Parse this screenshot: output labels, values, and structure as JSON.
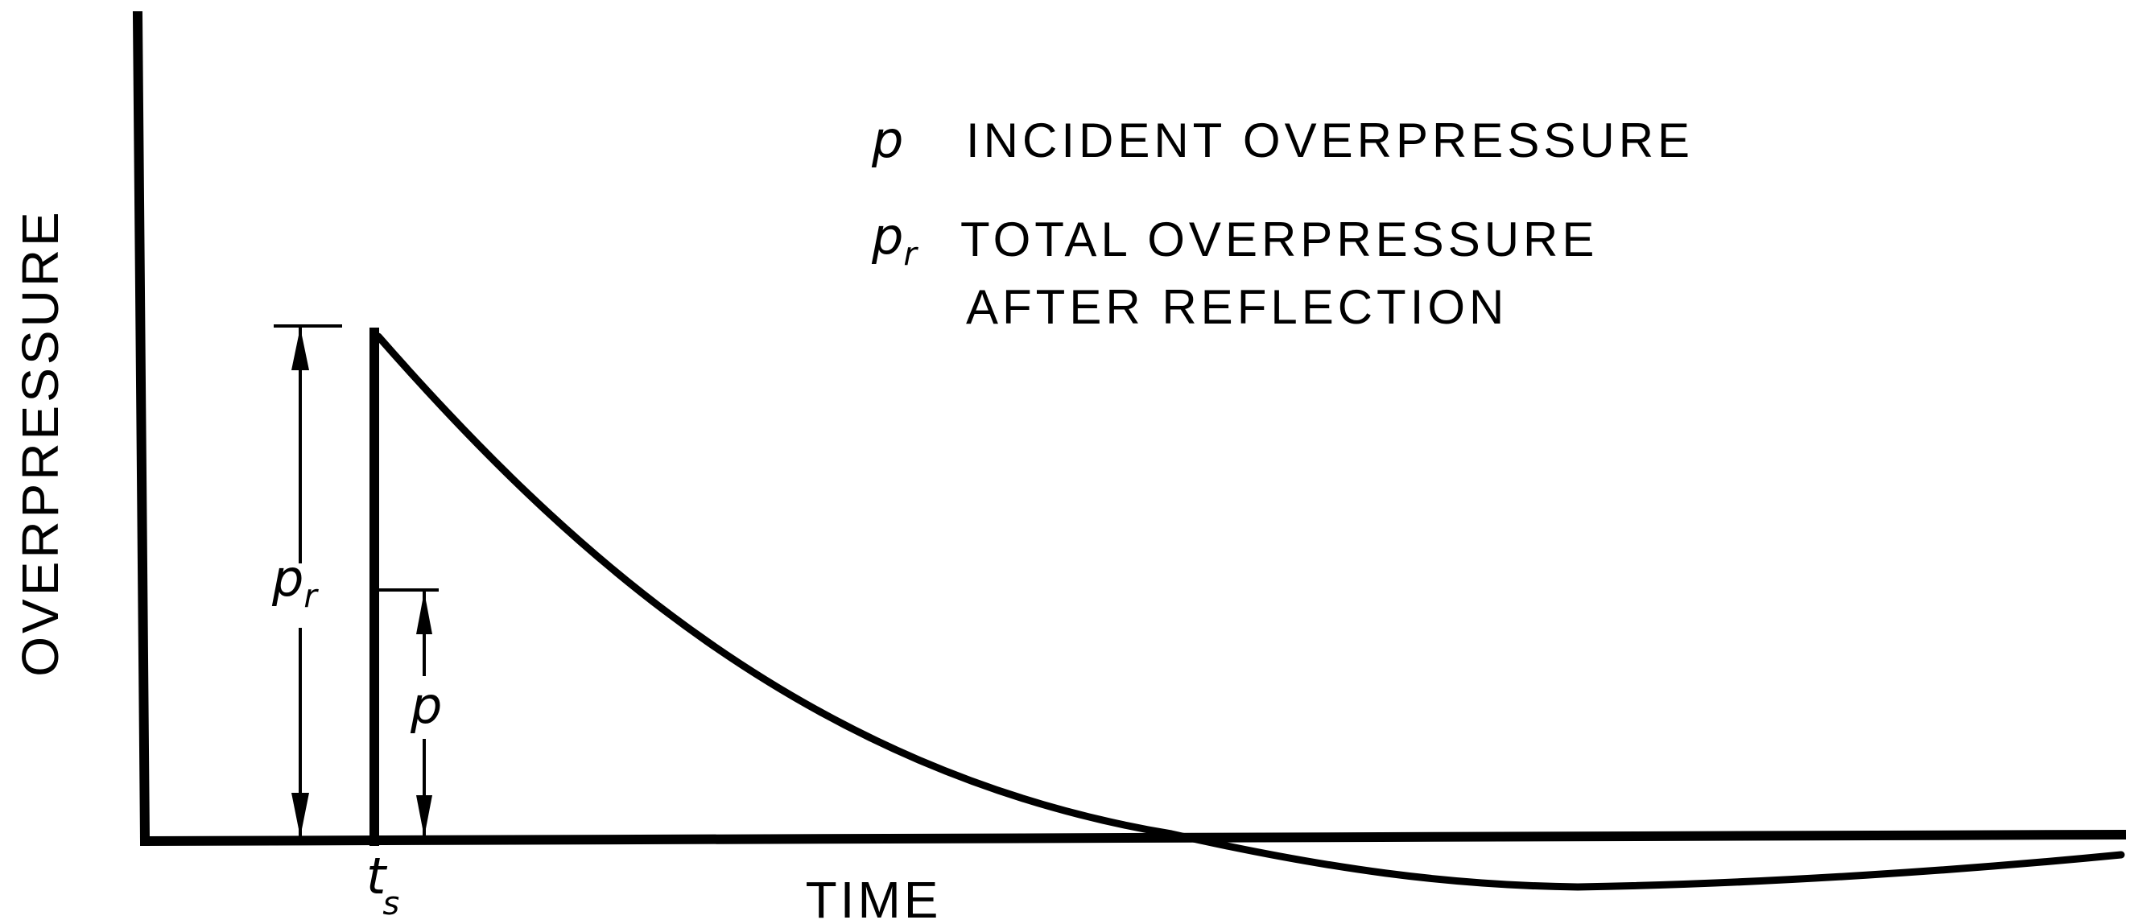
{
  "axes": {
    "y_label": "OVERPRESSURE",
    "x_label": "TIME",
    "x_marker": {
      "symbol": "t",
      "subscript": "s"
    }
  },
  "legend": {
    "incident": {
      "symbol": "p",
      "subscript": "",
      "text": "INCIDENT OVERPRESSURE"
    },
    "reflected": {
      "symbol": "p",
      "subscript": "r",
      "line1": "TOTAL OVERPRESSURE",
      "line2": "AFTER REFLECTION"
    }
  },
  "dimensions": {
    "reflected": {
      "symbol": "p",
      "subscript": "r"
    },
    "incident": {
      "symbol": "p"
    }
  },
  "colors": {
    "ink": "#000000",
    "background": "#ffffff"
  }
}
